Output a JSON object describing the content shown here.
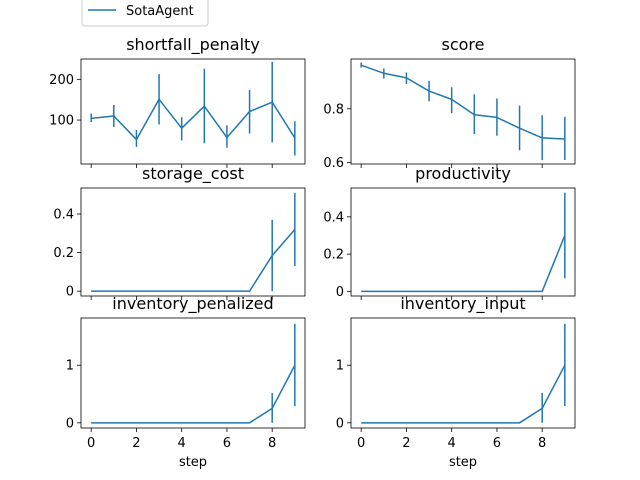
{
  "legend": {
    "label": "SotaAgent",
    "color": "#1f77b4",
    "placement": "upper-left-outside"
  },
  "chart_data": [
    {
      "type": "line",
      "title": "shortfall_penalty",
      "xlabel": "",
      "x": [
        0,
        1,
        2,
        3,
        4,
        5,
        6,
        7,
        8,
        9
      ],
      "series": [
        {
          "name": "SotaAgent",
          "color": "#1f77b4",
          "values": [
            104,
            110,
            52,
            151,
            80,
            134,
            57,
            121,
            144,
            56
          ],
          "err_low": [
            95,
            83,
            34,
            89,
            50,
            43,
            32,
            67,
            45,
            13
          ],
          "err_high": [
            116,
            137,
            76,
            213,
            107,
            226,
            87,
            174,
            243,
            97
          ]
        }
      ],
      "ylim": [
        -8,
        250
      ],
      "yticks": [
        100,
        200
      ],
      "xticks": [
        0,
        2,
        4,
        6,
        8
      ],
      "show_xticklabels": false
    },
    {
      "type": "line",
      "title": "score",
      "xlabel": "",
      "x": [
        0,
        1,
        2,
        3,
        4,
        5,
        6,
        7,
        8,
        9
      ],
      "series": [
        {
          "name": "SotaAgent",
          "color": "#1f77b4",
          "values": [
            0.962,
            0.932,
            0.915,
            0.866,
            0.835,
            0.778,
            0.768,
            0.728,
            0.692,
            0.688
          ],
          "err_low": [
            0.953,
            0.912,
            0.892,
            0.828,
            0.784,
            0.706,
            0.7,
            0.646,
            0.61,
            0.61
          ],
          "err_high": [
            0.972,
            0.95,
            0.935,
            0.904,
            0.88,
            0.854,
            0.838,
            0.812,
            0.776,
            0.77
          ]
        }
      ],
      "ylim": [
        0.595,
        0.985
      ],
      "yticks": [
        0.6,
        0.8
      ],
      "xticks": [
        0,
        2,
        4,
        6,
        8
      ],
      "show_xticklabels": false
    },
    {
      "type": "line",
      "title": "storage_cost",
      "xlabel": "",
      "x": [
        0,
        1,
        2,
        3,
        4,
        5,
        6,
        7,
        8,
        9
      ],
      "series": [
        {
          "name": "SotaAgent",
          "color": "#1f77b4",
          "values": [
            0,
            0,
            0,
            0,
            0,
            0,
            0,
            0,
            0.185,
            0.32
          ],
          "err_low": [
            0,
            0,
            0,
            0,
            0,
            0,
            0,
            0,
            0,
            0.13
          ],
          "err_high": [
            0,
            0,
            0,
            0,
            0,
            0,
            0,
            0,
            0.37,
            0.51
          ]
        }
      ],
      "ylim": [
        -0.025,
        0.535
      ],
      "yticks": [
        0.0,
        0.2,
        0.4
      ],
      "xticks": [
        0,
        2,
        4,
        6,
        8
      ],
      "show_xticklabels": false
    },
    {
      "type": "line",
      "title": "productivity",
      "xlabel": "",
      "x": [
        0,
        1,
        2,
        3,
        4,
        5,
        6,
        7,
        8,
        9
      ],
      "series": [
        {
          "name": "SotaAgent",
          "color": "#1f77b4",
          "values": [
            0,
            0,
            0,
            0,
            0,
            0,
            0,
            0,
            0,
            0.3
          ],
          "err_low": [
            0,
            0,
            0,
            0,
            0,
            0,
            0,
            0,
            0,
            0.07
          ],
          "err_high": [
            0,
            0,
            0,
            0,
            0,
            0,
            0,
            0,
            0,
            0.53
          ]
        }
      ],
      "ylim": [
        -0.025,
        0.555
      ],
      "yticks": [
        0.0,
        0.2,
        0.4
      ],
      "xticks": [
        0,
        2,
        4,
        6,
        8
      ],
      "show_xticklabels": false
    },
    {
      "type": "line",
      "title": "inventory_penalized",
      "xlabel": "step",
      "x": [
        0,
        1,
        2,
        3,
        4,
        5,
        6,
        7,
        8,
        9
      ],
      "series": [
        {
          "name": "SotaAgent",
          "color": "#1f77b4",
          "values": [
            0,
            0,
            0,
            0,
            0,
            0,
            0,
            0,
            0.25,
            1.0
          ],
          "err_low": [
            0,
            0,
            0,
            0,
            0,
            0,
            0,
            0,
            0,
            0.29
          ],
          "err_high": [
            0,
            0,
            0,
            0,
            0,
            0,
            0,
            0,
            0.52,
            1.72
          ]
        }
      ],
      "ylim": [
        -0.09,
        1.82
      ],
      "yticks": [
        0,
        1
      ],
      "xticks": [
        0,
        2,
        4,
        6,
        8
      ],
      "show_xticklabels": true
    },
    {
      "type": "line",
      "title": "inventory_input",
      "xlabel": "step",
      "x": [
        0,
        1,
        2,
        3,
        4,
        5,
        6,
        7,
        8,
        9
      ],
      "series": [
        {
          "name": "SotaAgent",
          "color": "#1f77b4",
          "values": [
            0,
            0,
            0,
            0,
            0,
            0,
            0,
            0,
            0.25,
            1.0
          ],
          "err_low": [
            0,
            0,
            0,
            0,
            0,
            0,
            0,
            0,
            0,
            0.29
          ],
          "err_high": [
            0,
            0,
            0,
            0,
            0,
            0,
            0,
            0,
            0.52,
            1.72
          ]
        }
      ],
      "ylim": [
        -0.09,
        1.82
      ],
      "yticks": [
        0,
        1
      ],
      "xticks": [
        0,
        2,
        4,
        6,
        8
      ],
      "show_xticklabels": true
    }
  ]
}
